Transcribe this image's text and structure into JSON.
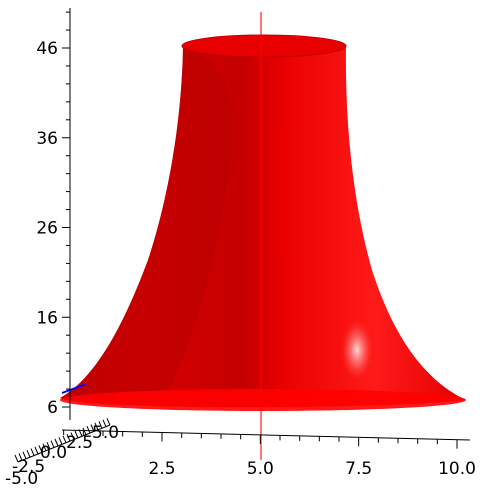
{
  "chart_data": {
    "type": "surface-3d",
    "title": "",
    "xlabel": "",
    "ylabel": "",
    "zlabel": "",
    "surface_color": "#ff0000",
    "axis_color": "#000000",
    "z_axis": {
      "ticks": [
        6,
        16,
        26,
        36,
        46
      ],
      "tick_labels": [
        "6",
        "16",
        "26",
        "36",
        "46"
      ]
    },
    "x_axis": {
      "ticks": [
        2.5,
        5.0,
        7.5,
        10.0
      ],
      "tick_labels": [
        "2.5",
        "5.0",
        "7.5",
        "10.0"
      ]
    },
    "depth_axis": {
      "tick_labels": [
        "-5.0",
        "-2.5",
        "0.0",
        "2.5",
        "5.0"
      ]
    },
    "surface_profile": {
      "z": [
        6,
        8,
        10,
        14,
        18,
        24,
        30,
        36,
        42,
        47
      ],
      "relative_radius": [
        1.0,
        0.9,
        0.8,
        0.68,
        0.58,
        0.49,
        0.42,
        0.37,
        0.33,
        0.3
      ]
    }
  }
}
